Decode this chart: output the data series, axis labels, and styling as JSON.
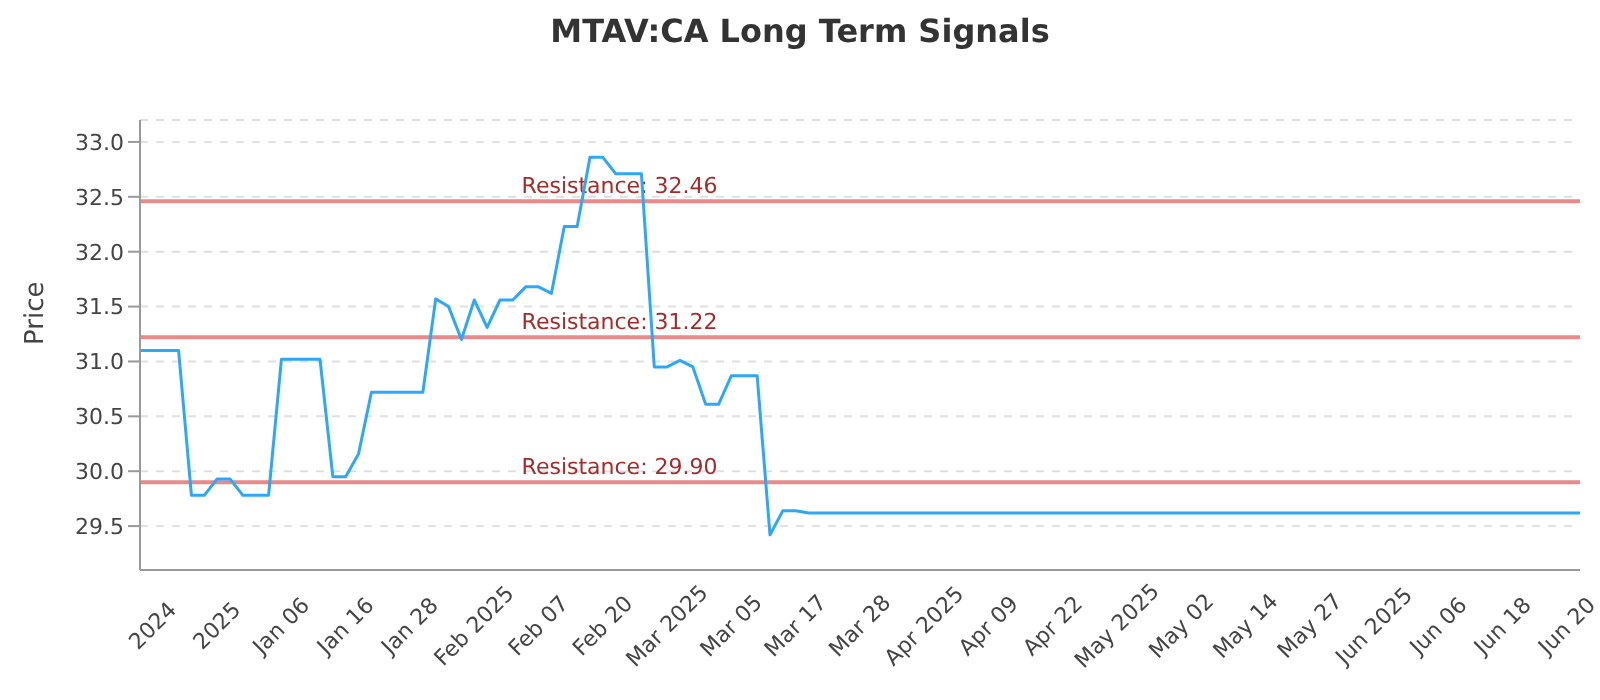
{
  "chart_data": {
    "type": "line",
    "title": "MTAV:CA Long Term Signals",
    "ylabel": "Price",
    "categories": [
      null,
      "2024",
      null,
      null,
      null,
      null,
      "2025",
      null,
      null,
      null,
      null,
      "Jan 06",
      null,
      null,
      null,
      null,
      "Jan 16",
      null,
      null,
      null,
      null,
      "Jan 28",
      null,
      null,
      null,
      null,
      "Feb 2025",
      null,
      null,
      null,
      null,
      "Feb 07",
      null,
      null,
      null,
      null,
      "Feb 20",
      null,
      null,
      null,
      null,
      "Mar 2025",
      null,
      null,
      null,
      null,
      "Mar 05",
      null,
      null,
      null,
      null,
      "Mar 17",
      null,
      null,
      null,
      null,
      "Mar 28",
      null,
      null,
      null,
      null,
      "Apr 2025",
      null,
      null,
      null,
      null,
      "Apr 09",
      null,
      null,
      null,
      null,
      "Apr 22",
      null,
      null,
      null,
      null,
      "May 2025",
      null,
      null,
      null,
      null,
      "May 02",
      null,
      null,
      null,
      null,
      "May 14",
      null,
      null,
      null,
      null,
      "May 27",
      null,
      null,
      null,
      null,
      "Jun 2025",
      null,
      null,
      null,
      null,
      "Jun 06",
      null,
      null,
      null,
      null,
      "Jun 18",
      null,
      null,
      null,
      null,
      "Jun 20",
      null
    ],
    "series": [
      {
        "color": "#2ea8f5",
        "values": [
          31.1,
          31.1,
          31.1,
          31.1,
          29.78,
          29.78,
          29.93,
          29.93,
          29.78,
          29.78,
          29.78,
          31.02,
          31.02,
          31.02,
          31.02,
          29.95,
          29.95,
          30.16,
          30.72,
          30.72,
          30.72,
          30.72,
          30.72,
          31.57,
          31.5,
          31.2,
          31.56,
          31.31,
          31.56,
          31.56,
          31.68,
          31.68,
          31.62,
          32.23,
          32.23,
          32.86,
          32.86,
          32.71,
          32.71,
          32.71,
          30.95,
          30.95,
          31.01,
          30.95,
          30.61,
          30.61,
          30.87,
          30.87,
          30.87,
          29.42,
          29.64,
          29.64,
          29.62,
          29.62,
          29.62,
          29.62,
          29.62,
          29.62,
          29.62,
          29.62,
          29.62,
          29.62,
          29.62,
          29.62,
          29.62,
          29.62,
          29.62,
          29.62,
          29.62,
          29.62,
          29.62,
          29.62,
          29.62,
          29.62,
          29.62,
          29.62,
          29.62,
          29.62,
          29.62,
          29.62,
          29.62,
          29.62,
          29.62,
          29.62,
          29.62,
          29.62,
          29.62,
          29.62,
          29.62,
          29.62,
          29.62,
          29.62,
          29.62,
          29.62,
          29.62,
          29.62,
          29.62,
          29.62,
          29.62,
          29.62,
          29.62,
          29.62,
          29.62,
          29.62,
          29.62,
          29.62,
          29.62,
          29.62,
          29.62,
          29.62,
          29.62,
          29.62,
          29.62
        ]
      }
    ],
    "ylim": [
      29.1,
      33.2
    ],
    "yticks": [
      {
        "value": 29.5,
        "label": "29.5"
      },
      {
        "value": 30,
        "label": "30.0"
      },
      {
        "value": 30.5,
        "label": "30.5"
      },
      {
        "value": 31,
        "label": "31.0"
      },
      {
        "value": 31.5,
        "label": "31.5"
      },
      {
        "value": 32,
        "label": "32.0"
      },
      {
        "value": 32.5,
        "label": "32.5"
      },
      {
        "value": 33,
        "label": "33.0"
      }
    ],
    "ref_lines": [
      {
        "axis": "y",
        "value": 32.46,
        "label": "Resistance: 32.46",
        "color": "#e88a8a"
      },
      {
        "axis": "y",
        "value": 31.22,
        "label": "Resistance: 31.22",
        "color": "#e88a8a"
      },
      {
        "axis": "y",
        "value": 29.9,
        "label": "Resistance: 29.90",
        "color": "#e88a8a"
      }
    ],
    "grid": "y",
    "marker": "none",
    "line_style": "solid",
    "legend": false
  }
}
